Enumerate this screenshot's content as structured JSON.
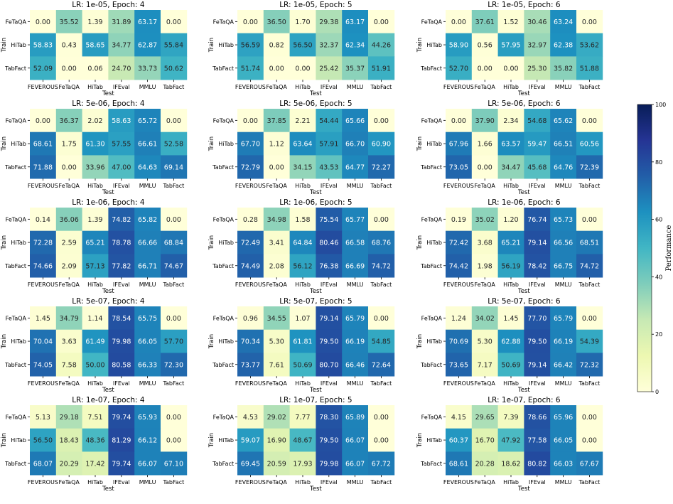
{
  "chart_data": {
    "type": "heatmap",
    "colormap": "YlGnBu",
    "train_axis_label": "Train",
    "test_axis_label": "Test",
    "rows": [
      "FeTaQA",
      "HiTab",
      "TabFact"
    ],
    "columns": [
      "FEVEROUS",
      "FeTaQA",
      "HiTab",
      "IFEval",
      "MMLU",
      "TabFact"
    ],
    "colorbar": {
      "label": "Performance",
      "range": [
        0,
        100
      ],
      "ticks": [
        "0",
        "20",
        "40",
        "60",
        "80",
        "100"
      ]
    },
    "panels": [
      {
        "title": "LR: 1e-05, Epoch: 4",
        "values": [
          [
            0.0,
            35.52,
            1.39,
            31.89,
            63.17,
            0.0
          ],
          [
            58.83,
            0.43,
            58.65,
            34.77,
            62.87,
            55.84
          ],
          [
            52.09,
            0.0,
            0.06,
            24.7,
            33.73,
            50.62
          ]
        ]
      },
      {
        "title": "LR: 1e-05, Epoch: 5",
        "values": [
          [
            0.0,
            36.5,
            1.7,
            29.38,
            63.17,
            0.0
          ],
          [
            56.59,
            0.82,
            56.5,
            32.37,
            62.34,
            44.26
          ],
          [
            51.74,
            0.0,
            0.0,
            25.42,
            35.37,
            51.91
          ]
        ]
      },
      {
        "title": "LR: 1e-05, Epoch: 6",
        "values": [
          [
            0.0,
            37.61,
            1.52,
            30.46,
            63.24,
            0.0
          ],
          [
            58.9,
            0.56,
            57.95,
            32.97,
            62.38,
            53.62
          ],
          [
            52.7,
            0.0,
            0.0,
            25.3,
            35.82,
            51.88
          ]
        ]
      },
      {
        "title": "LR: 5e-06, Epoch: 4",
        "values": [
          [
            0.0,
            36.37,
            2.02,
            58.63,
            65.72,
            0.0
          ],
          [
            68.61,
            1.75,
            61.3,
            57.55,
            66.61,
            52.58
          ],
          [
            71.88,
            0.0,
            33.96,
            47.0,
            64.63,
            69.14
          ]
        ]
      },
      {
        "title": "LR: 5e-06, Epoch: 5",
        "values": [
          [
            0.0,
            37.85,
            2.21,
            54.44,
            65.66,
            0.0
          ],
          [
            67.7,
            1.12,
            63.64,
            57.91,
            66.7,
            60.9
          ],
          [
            72.79,
            0.0,
            34.15,
            43.53,
            64.77,
            72.27
          ]
        ]
      },
      {
        "title": "LR: 5e-06, Epoch: 6",
        "values": [
          [
            0.0,
            37.9,
            2.34,
            54.68,
            65.62,
            0.0
          ],
          [
            67.96,
            1.66,
            63.57,
            59.47,
            66.51,
            60.56
          ],
          [
            73.05,
            0.0,
            34.47,
            45.68,
            64.76,
            72.39
          ]
        ]
      },
      {
        "title": "LR: 1e-06, Epoch: 4",
        "values": [
          [
            0.14,
            36.06,
            1.39,
            74.82,
            65.82,
            0.0
          ],
          [
            72.28,
            2.59,
            65.21,
            78.78,
            66.66,
            68.84
          ],
          [
            74.66,
            2.09,
            57.13,
            77.82,
            66.71,
            74.67
          ]
        ]
      },
      {
        "title": "LR: 1e-06, Epoch: 5",
        "values": [
          [
            0.28,
            34.98,
            1.58,
            75.54,
            65.77,
            0.0
          ],
          [
            72.49,
            3.41,
            64.84,
            80.46,
            66.58,
            68.76
          ],
          [
            74.49,
            2.08,
            56.12,
            76.38,
            66.69,
            74.72
          ]
        ]
      },
      {
        "title": "LR: 1e-06, Epoch: 6",
        "values": [
          [
            0.19,
            35.02,
            1.2,
            76.74,
            65.73,
            0.0
          ],
          [
            72.42,
            3.68,
            65.21,
            79.14,
            66.56,
            68.51
          ],
          [
            74.42,
            1.98,
            56.19,
            78.42,
            66.75,
            74.72
          ]
        ]
      },
      {
        "title": "LR: 5e-07, Epoch: 4",
        "values": [
          [
            1.45,
            34.79,
            1.14,
            78.54,
            65.75,
            0.0
          ],
          [
            70.04,
            3.63,
            61.49,
            79.98,
            66.05,
            57.7
          ],
          [
            74.05,
            7.58,
            50.0,
            80.58,
            66.33,
            72.3
          ]
        ]
      },
      {
        "title": "LR: 5e-07, Epoch: 5",
        "values": [
          [
            0.96,
            34.55,
            1.07,
            79.14,
            65.79,
            0.0
          ],
          [
            70.34,
            5.3,
            61.81,
            79.5,
            66.19,
            54.85
          ],
          [
            73.77,
            7.61,
            50.69,
            80.7,
            66.46,
            72.64
          ]
        ]
      },
      {
        "title": "LR: 5e-07, Epoch: 6",
        "values": [
          [
            1.24,
            34.02,
            1.45,
            77.7,
            65.79,
            0.0
          ],
          [
            70.69,
            5.3,
            62.88,
            79.5,
            66.19,
            54.39
          ],
          [
            73.65,
            7.17,
            50.69,
            79.14,
            66.42,
            72.32
          ]
        ]
      },
      {
        "title": "LR: 1e-07, Epoch: 4",
        "values": [
          [
            5.13,
            29.18,
            7.51,
            79.74,
            65.93,
            0.0
          ],
          [
            56.5,
            18.43,
            48.36,
            81.29,
            66.12,
            0.0
          ],
          [
            68.07,
            20.29,
            17.42,
            79.74,
            66.07,
            67.1
          ]
        ]
      },
      {
        "title": "LR: 1e-07, Epoch: 5",
        "values": [
          [
            4.53,
            29.02,
            7.77,
            78.3,
            65.89,
            0.0
          ],
          [
            59.07,
            16.9,
            48.67,
            79.5,
            66.07,
            0.0
          ],
          [
            69.45,
            20.59,
            17.93,
            79.98,
            66.07,
            67.72
          ]
        ]
      },
      {
        "title": "LR: 1e-07, Epoch: 6",
        "values": [
          [
            4.15,
            29.65,
            7.39,
            78.66,
            65.96,
            0.0
          ],
          [
            60.37,
            16.7,
            47.92,
            77.58,
            66.05,
            0.0
          ],
          [
            68.61,
            20.28,
            18.62,
            80.82,
            66.03,
            67.67
          ]
        ]
      }
    ]
  }
}
